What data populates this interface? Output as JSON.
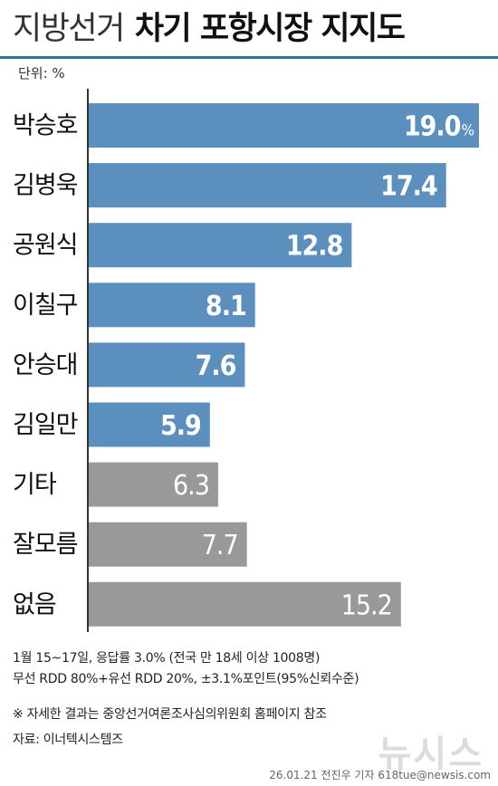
{
  "header": {
    "title_light": "지방선거",
    "title_bold": "차기 포항시장 지지도",
    "unit_label": "단위: %"
  },
  "chart_data": {
    "type": "bar",
    "orientation": "horizontal",
    "categories": [
      "박승호",
      "김병욱",
      "공원식",
      "이칠구",
      "안승대",
      "김일만",
      "기타",
      "잘모름",
      "없음"
    ],
    "values": [
      19.0,
      17.4,
      12.8,
      8.1,
      7.6,
      5.9,
      6.3,
      7.7,
      15.2
    ],
    "value_labels": [
      "19.0",
      "17.4",
      "12.8",
      "8.1",
      "7.6",
      "5.9",
      "6.3",
      "7.7",
      "15.2"
    ],
    "first_value_suffix": "%",
    "colors": [
      "#5b8fbe",
      "#5b8fbe",
      "#5b8fbe",
      "#5b8fbe",
      "#5b8fbe",
      "#5b8fbe",
      "#999999",
      "#999999",
      "#999999"
    ],
    "xlim": [
      0,
      19.0
    ],
    "legend": "none",
    "grid": false
  },
  "footer": {
    "line1": "1월 15~17일, 응답률 3.0% (전국 만 18세 이상 1008명)",
    "line2": "무선 RDD 80%+유선 RDD 20%, ±3.1%포인트(95%신뢰수준)",
    "note": "※ 자세한 결과는 중앙선거여론조사심의위원회 홈페이지 참조",
    "source": "자료: 이너텍시스템즈",
    "credit": "26.01.21 전진우 기자 618tue@newsis.com",
    "watermark": "뉴시스"
  }
}
